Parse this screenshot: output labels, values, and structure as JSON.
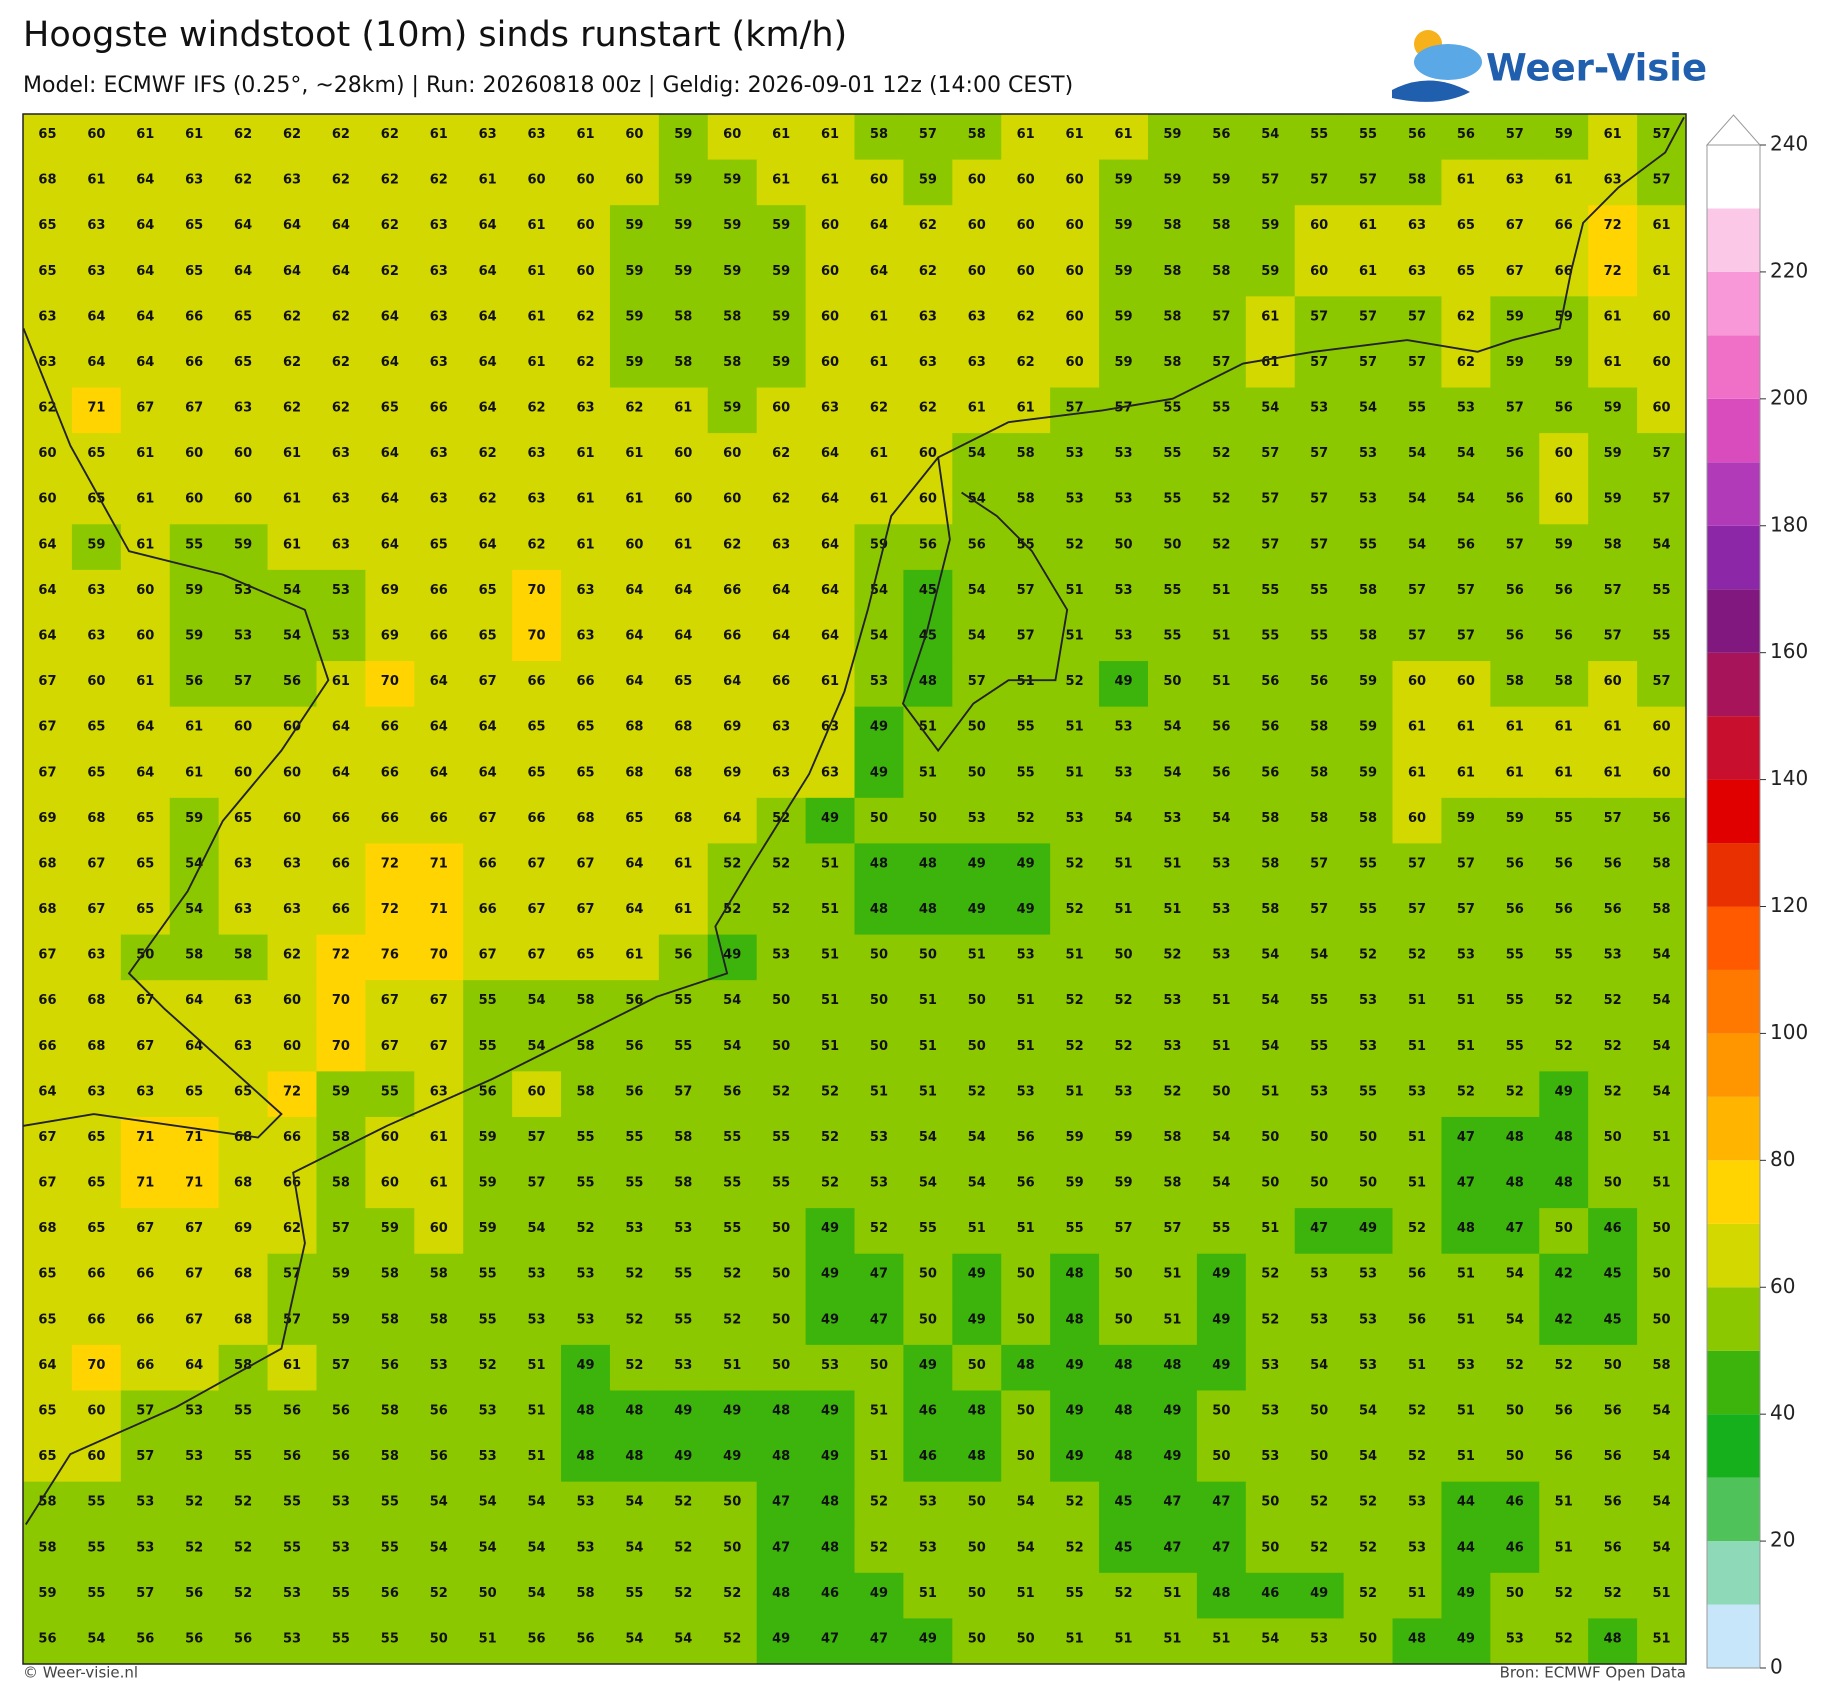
{
  "header": {
    "title": "Hoogste windstoot (10m) sinds runstart (km/h)",
    "subtitle": "Model: ECMWF IFS (0.25°, ~28km)  |  Run: 20260818 00z  |  Geldig: 2026-09-01 12z (14:00 CEST)",
    "logo": "Weer-Visie"
  },
  "grid": {
    "rows": [
      [
        65,
        60,
        61,
        61,
        62,
        62,
        62,
        62,
        61,
        63,
        63,
        61,
        60,
        59,
        60,
        61,
        61,
        58,
        57,
        58,
        61,
        61,
        61,
        59,
        56,
        54,
        55,
        55,
        56,
        56,
        57,
        59,
        61,
        57
      ],
      [
        68,
        61,
        64,
        63,
        62,
        63,
        62,
        62,
        62,
        61,
        60,
        60,
        60,
        59,
        59,
        61,
        61,
        60,
        59,
        60,
        60,
        60,
        59,
        59,
        59,
        57,
        57,
        57,
        58,
        61,
        63,
        61,
        63,
        57
      ],
      [
        65,
        63,
        64,
        65,
        64,
        64,
        64,
        62,
        63,
        64,
        61,
        60,
        59,
        59,
        59,
        59,
        60,
        64,
        62,
        60,
        60,
        60,
        59,
        58,
        58,
        59,
        60,
        61,
        63,
        65,
        67,
        66,
        72,
        61
      ],
      [
        65,
        63,
        64,
        65,
        64,
        64,
        64,
        62,
        63,
        64,
        61,
        60,
        59,
        59,
        59,
        59,
        60,
        64,
        62,
        60,
        60,
        60,
        59,
        58,
        58,
        59,
        60,
        61,
        63,
        65,
        67,
        66,
        72,
        61
      ],
      [
        63,
        64,
        64,
        66,
        65,
        62,
        62,
        64,
        63,
        64,
        61,
        62,
        59,
        58,
        58,
        59,
        60,
        61,
        63,
        63,
        62,
        60,
        59,
        58,
        57,
        61,
        57,
        57,
        57,
        62,
        59,
        59,
        61,
        60
      ],
      [
        63,
        64,
        64,
        66,
        65,
        62,
        62,
        64,
        63,
        64,
        61,
        62,
        59,
        58,
        58,
        59,
        60,
        61,
        63,
        63,
        62,
        60,
        59,
        58,
        57,
        61,
        57,
        57,
        57,
        62,
        59,
        59,
        61,
        60
      ],
      [
        62,
        71,
        67,
        67,
        63,
        62,
        62,
        65,
        66,
        64,
        62,
        63,
        62,
        61,
        59,
        60,
        63,
        62,
        62,
        61,
        61,
        57,
        57,
        55,
        55,
        54,
        53,
        54,
        55,
        53,
        57,
        56,
        59,
        60
      ],
      [
        60,
        65,
        61,
        60,
        60,
        61,
        63,
        64,
        63,
        62,
        63,
        61,
        61,
        60,
        60,
        62,
        64,
        61,
        60,
        54,
        58,
        53,
        53,
        55,
        52,
        57,
        57,
        53,
        54,
        54,
        56,
        60,
        59,
        57
      ],
      [
        60,
        65,
        61,
        60,
        60,
        61,
        63,
        64,
        63,
        62,
        63,
        61,
        61,
        60,
        60,
        62,
        64,
        61,
        60,
        54,
        58,
        53,
        53,
        55,
        52,
        57,
        57,
        53,
        54,
        54,
        56,
        60,
        59,
        57
      ],
      [
        64,
        59,
        61,
        55,
        59,
        61,
        63,
        64,
        65,
        64,
        62,
        61,
        60,
        61,
        62,
        63,
        64,
        59,
        56,
        56,
        55,
        52,
        50,
        50,
        52,
        57,
        57,
        55,
        54,
        56,
        57,
        59,
        58,
        54
      ],
      [
        64,
        63,
        60,
        59,
        53,
        54,
        53,
        69,
        66,
        65,
        70,
        63,
        64,
        64,
        66,
        64,
        64,
        54,
        45,
        54,
        57,
        51,
        53,
        55,
        51,
        55,
        55,
        58,
        57,
        57,
        56,
        56,
        57,
        55
      ],
      [
        64,
        63,
        60,
        59,
        53,
        54,
        53,
        69,
        66,
        65,
        70,
        63,
        64,
        64,
        66,
        64,
        64,
        54,
        45,
        54,
        57,
        51,
        53,
        55,
        51,
        55,
        55,
        58,
        57,
        57,
        56,
        56,
        57,
        55
      ],
      [
        67,
        60,
        61,
        56,
        57,
        56,
        61,
        70,
        64,
        67,
        66,
        66,
        64,
        65,
        64,
        66,
        61,
        53,
        48,
        57,
        51,
        52,
        49,
        50,
        51,
        56,
        56,
        59,
        60,
        60,
        58,
        58,
        60,
        57
      ],
      [
        67,
        65,
        64,
        61,
        60,
        60,
        64,
        66,
        64,
        64,
        65,
        65,
        68,
        68,
        69,
        63,
        63,
        49,
        51,
        50,
        55,
        51,
        53,
        54,
        56,
        56,
        58,
        59,
        61,
        61,
        61,
        61,
        61,
        60
      ],
      [
        67,
        65,
        64,
        61,
        60,
        60,
        64,
        66,
        64,
        64,
        65,
        65,
        68,
        68,
        69,
        63,
        63,
        49,
        51,
        50,
        55,
        51,
        53,
        54,
        56,
        56,
        58,
        59,
        61,
        61,
        61,
        61,
        61,
        60
      ],
      [
        69,
        68,
        65,
        59,
        65,
        60,
        66,
        66,
        66,
        67,
        66,
        68,
        65,
        68,
        64,
        52,
        49,
        50,
        50,
        53,
        52,
        53,
        54,
        53,
        54,
        58,
        58,
        58,
        60,
        59,
        59,
        55,
        57,
        56
      ],
      [
        68,
        67,
        65,
        54,
        63,
        63,
        66,
        72,
        71,
        66,
        67,
        67,
        64,
        61,
        52,
        52,
        51,
        48,
        48,
        49,
        49,
        52,
        51,
        51,
        53,
        58,
        57,
        55,
        57,
        57,
        56,
        56,
        56,
        58
      ],
      [
        68,
        67,
        65,
        54,
        63,
        63,
        66,
        72,
        71,
        66,
        67,
        67,
        64,
        61,
        52,
        52,
        51,
        48,
        48,
        49,
        49,
        52,
        51,
        51,
        53,
        58,
        57,
        55,
        57,
        57,
        56,
        56,
        56,
        58
      ],
      [
        67,
        63,
        50,
        58,
        58,
        62,
        72,
        76,
        70,
        67,
        67,
        65,
        61,
        56,
        49,
        53,
        51,
        50,
        50,
        51,
        53,
        51,
        50,
        52,
        53,
        54,
        54,
        52,
        52,
        53,
        55,
        55,
        53,
        54
      ],
      [
        66,
        68,
        67,
        64,
        63,
        60,
        70,
        67,
        67,
        55,
        54,
        58,
        56,
        55,
        54,
        50,
        51,
        50,
        51,
        50,
        51,
        52,
        52,
        53,
        51,
        54,
        55,
        53,
        51,
        51,
        55,
        52,
        52,
        54
      ],
      [
        66,
        68,
        67,
        64,
        63,
        60,
        70,
        67,
        67,
        55,
        54,
        58,
        56,
        55,
        54,
        50,
        51,
        50,
        51,
        50,
        51,
        52,
        52,
        53,
        51,
        54,
        55,
        53,
        51,
        51,
        55,
        52,
        52,
        54
      ],
      [
        64,
        63,
        63,
        65,
        65,
        72,
        59,
        55,
        63,
        56,
        60,
        58,
        56,
        57,
        56,
        52,
        52,
        51,
        51,
        52,
        53,
        51,
        53,
        52,
        50,
        51,
        53,
        55,
        53,
        52,
        52,
        49,
        52,
        54
      ],
      [
        67,
        65,
        71,
        71,
        68,
        66,
        58,
        60,
        61,
        59,
        57,
        55,
        55,
        58,
        55,
        55,
        52,
        53,
        54,
        54,
        56,
        59,
        59,
        58,
        54,
        50,
        50,
        50,
        51,
        47,
        48,
        48,
        50,
        51
      ],
      [
        67,
        65,
        71,
        71,
        68,
        66,
        58,
        60,
        61,
        59,
        57,
        55,
        55,
        58,
        55,
        55,
        52,
        53,
        54,
        54,
        56,
        59,
        59,
        58,
        54,
        50,
        50,
        50,
        51,
        47,
        48,
        48,
        50,
        51
      ],
      [
        68,
        65,
        67,
        67,
        69,
        62,
        57,
        59,
        60,
        59,
        54,
        52,
        53,
        53,
        55,
        50,
        49,
        52,
        55,
        51,
        51,
        55,
        57,
        57,
        55,
        51,
        47,
        49,
        52,
        48,
        47,
        50,
        46,
        50
      ],
      [
        65,
        66,
        66,
        67,
        68,
        57,
        59,
        58,
        58,
        55,
        53,
        53,
        52,
        55,
        52,
        50,
        49,
        47,
        50,
        49,
        50,
        48,
        50,
        51,
        49,
        52,
        53,
        53,
        56,
        51,
        54,
        42,
        45,
        50
      ],
      [
        65,
        66,
        66,
        67,
        68,
        57,
        59,
        58,
        58,
        55,
        53,
        53,
        52,
        55,
        52,
        50,
        49,
        47,
        50,
        49,
        50,
        48,
        50,
        51,
        49,
        52,
        53,
        53,
        56,
        51,
        54,
        42,
        45,
        50
      ],
      [
        64,
        70,
        66,
        64,
        58,
        61,
        57,
        56,
        53,
        52,
        51,
        49,
        52,
        53,
        51,
        50,
        53,
        50,
        49,
        50,
        48,
        49,
        48,
        48,
        49,
        53,
        54,
        53,
        51,
        53,
        52,
        52,
        50,
        58
      ],
      [
        65,
        60,
        57,
        53,
        55,
        56,
        56,
        58,
        56,
        53,
        51,
        48,
        48,
        49,
        49,
        48,
        49,
        51,
        46,
        48,
        50,
        49,
        48,
        49,
        50,
        53,
        50,
        54,
        52,
        51,
        50,
        56,
        56,
        54
      ],
      [
        65,
        60,
        57,
        53,
        55,
        56,
        56,
        58,
        56,
        53,
        51,
        48,
        48,
        49,
        49,
        48,
        49,
        51,
        46,
        48,
        50,
        49,
        48,
        49,
        50,
        53,
        50,
        54,
        52,
        51,
        50,
        56,
        56,
        54
      ],
      [
        58,
        55,
        53,
        52,
        52,
        55,
        53,
        55,
        54,
        54,
        54,
        53,
        54,
        52,
        50,
        47,
        48,
        52,
        53,
        50,
        54,
        52,
        45,
        47,
        47,
        50,
        52,
        52,
        53,
        44,
        46,
        51,
        56,
        54
      ],
      [
        58,
        55,
        53,
        52,
        52,
        55,
        53,
        55,
        54,
        54,
        54,
        53,
        54,
        52,
        50,
        47,
        48,
        52,
        53,
        50,
        54,
        52,
        45,
        47,
        47,
        50,
        52,
        52,
        53,
        44,
        46,
        51,
        56,
        54
      ],
      [
        59,
        55,
        57,
        56,
        52,
        53,
        55,
        56,
        52,
        50,
        54,
        58,
        55,
        52,
        52,
        48,
        46,
        49,
        51,
        50,
        51,
        55,
        52,
        51,
        48,
        46,
        49,
        52,
        51,
        49,
        50,
        52,
        52,
        51
      ],
      [
        56,
        54,
        56,
        56,
        56,
        53,
        55,
        55,
        50,
        51,
        56,
        56,
        54,
        54,
        52,
        49,
        47,
        47,
        49,
        50,
        50,
        51,
        51,
        51,
        51,
        54,
        53,
        50,
        48,
        49,
        53,
        52,
        48,
        51
      ]
    ]
  },
  "colorbar": {
    "ticks": [
      0,
      20,
      40,
      60,
      80,
      100,
      120,
      140,
      160,
      180,
      200,
      220,
      240
    ],
    "colors": [
      "#c8e6fa",
      "#8ed9b8",
      "#4fc35a",
      "#16b01c",
      "#3db40c",
      "#8cc800",
      "#d2d800",
      "#ffd400",
      "#ffb400",
      "#ff9600",
      "#ff7800",
      "#ff5a00",
      "#e83000",
      "#e00000",
      "#c8102e",
      "#a8145a",
      "#801880",
      "#8c28a8",
      "#b03ab8",
      "#d84cbe",
      "#f070c8",
      "#f898d8",
      "#fcc8e8",
      "#ffffff"
    ]
  },
  "footer": {
    "left": "© Weer-visie.nl",
    "right": "Bron: ECMWF Open Data"
  }
}
